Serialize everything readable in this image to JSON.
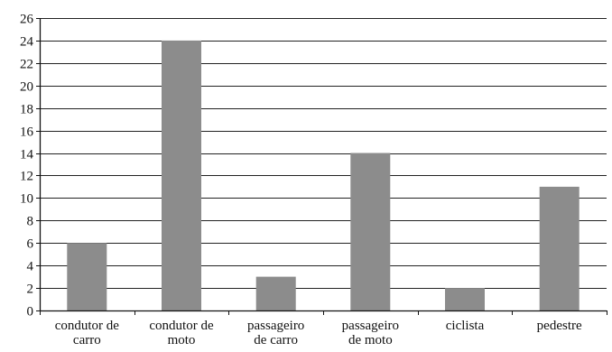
{
  "chart_data": {
    "type": "bar",
    "title": "",
    "xlabel": "",
    "ylabel": "",
    "categories": [
      [
        "condutor de",
        "carro"
      ],
      [
        "condutor de",
        "moto"
      ],
      [
        "passageiro",
        "de carro"
      ],
      [
        "passageiro",
        "de moto"
      ],
      [
        "ciclista"
      ],
      [
        "pedestre"
      ]
    ],
    "values": [
      6,
      24,
      3,
      14,
      2,
      11
    ],
    "ylim": [
      0,
      26
    ],
    "yticks": [
      0,
      2,
      4,
      6,
      8,
      10,
      12,
      14,
      16,
      18,
      20,
      22,
      24,
      26
    ],
    "grid": true,
    "legend": "none",
    "bar_color": "#8c8c8c",
    "grid_color": "#222222",
    "axis_color": "#111111"
  }
}
